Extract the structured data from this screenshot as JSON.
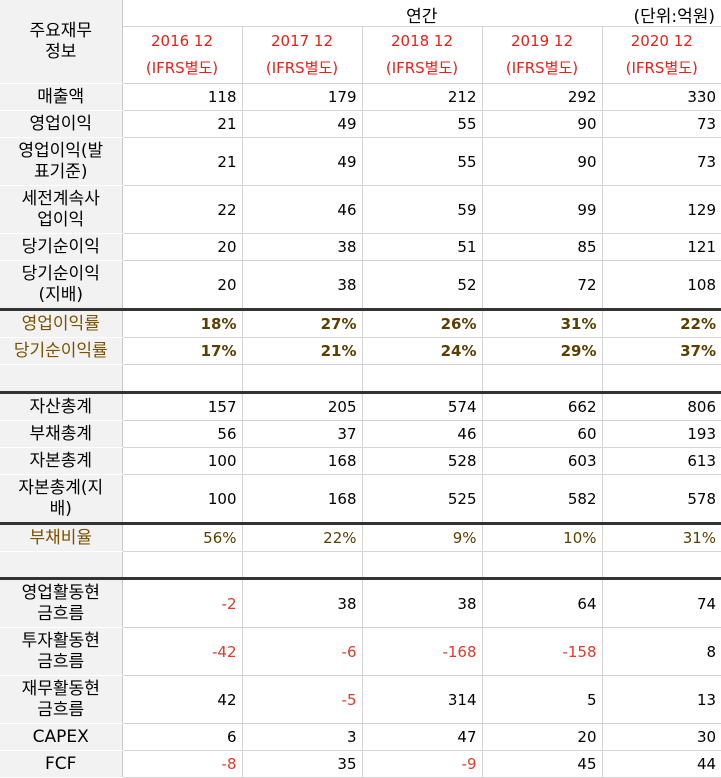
{
  "header": {
    "corner": "주요재무\n정보",
    "annual_label": "연간",
    "unit_label": "(단위:억원)",
    "periods": [
      {
        "year": "2016 12",
        "basis": "(IFRS별도)"
      },
      {
        "year": "2017 12",
        "basis": "(IFRS별도)"
      },
      {
        "year": "2018 12",
        "basis": "(IFRS별도)"
      },
      {
        "year": "2019 12",
        "basis": "(IFRS별도)"
      },
      {
        "year": "2020 12",
        "basis": "(IFRS별도)"
      }
    ]
  },
  "section1": [
    {
      "label": "매출액",
      "values": [
        "118",
        "179",
        "212",
        "292",
        "330"
      ]
    },
    {
      "label": "영업이익",
      "values": [
        "21",
        "49",
        "55",
        "90",
        "73"
      ]
    },
    {
      "label": "영업이익(발\n표기준)",
      "values": [
        "21",
        "49",
        "55",
        "90",
        "73"
      ]
    },
    {
      "label": "세전계속사\n업이익",
      "values": [
        "22",
        "46",
        "59",
        "99",
        "129"
      ]
    },
    {
      "label": "당기순이익",
      "values": [
        "20",
        "38",
        "51",
        "85",
        "121"
      ]
    },
    {
      "label": "당기순이익\n(지배)",
      "values": [
        "20",
        "38",
        "52",
        "72",
        "108"
      ]
    }
  ],
  "ratios1": [
    {
      "label": "영업이익률",
      "values": [
        "18%",
        "27%",
        "26%",
        "31%",
        "22%"
      ]
    },
    {
      "label": "당기순이익률",
      "values": [
        "17%",
        "21%",
        "24%",
        "29%",
        "37%"
      ]
    }
  ],
  "section2": [
    {
      "label": "자산총계",
      "values": [
        "157",
        "205",
        "574",
        "662",
        "806"
      ]
    },
    {
      "label": "부채총계",
      "values": [
        "56",
        "37",
        "46",
        "60",
        "193"
      ]
    },
    {
      "label": "자본총계",
      "values": [
        "100",
        "168",
        "528",
        "603",
        "613"
      ]
    },
    {
      "label": "자본총계(지\n배)",
      "values": [
        "100",
        "168",
        "525",
        "582",
        "578"
      ]
    }
  ],
  "ratios2": [
    {
      "label": "부채비율",
      "values": [
        "56%",
        "22%",
        "9%",
        "10%",
        "31%"
      ]
    }
  ],
  "section3": [
    {
      "label": "영업활동현\n금흐름",
      "values": [
        "-2",
        "38",
        "38",
        "64",
        "74"
      ]
    },
    {
      "label": "투자활동현\n금흐름",
      "values": [
        "-42",
        "-6",
        "-168",
        "-158",
        "8"
      ]
    },
    {
      "label": "재무활동현\n금흐름",
      "values": [
        "42",
        "-5",
        "314",
        "5",
        "13"
      ]
    },
    {
      "label": "CAPEX",
      "values": [
        "6",
        "3",
        "47",
        "20",
        "30"
      ]
    },
    {
      "label": "FCF",
      "values": [
        "-8",
        "35",
        "-9",
        "45",
        "44"
      ]
    }
  ]
}
